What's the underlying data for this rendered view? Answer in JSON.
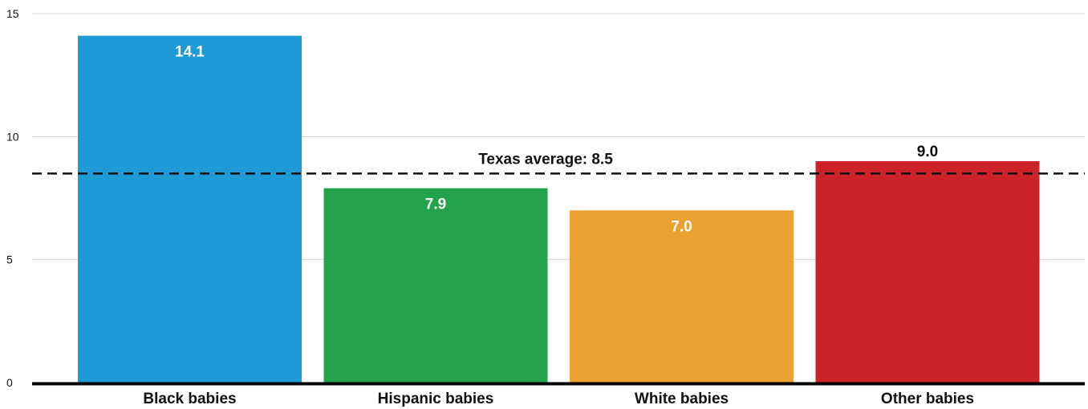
{
  "chart_data": {
    "type": "bar",
    "categories": [
      "Black babies",
      "Hispanic babies",
      "White babies",
      "Other babies"
    ],
    "values": [
      14.1,
      7.9,
      7.0,
      9.0
    ],
    "value_labels": [
      "14.1",
      "7.9",
      "7.0",
      "9.0"
    ],
    "colors": [
      "#1e9ad6",
      "#23a34c",
      "#eba032",
      "#cc2229"
    ],
    "ylim": [
      0,
      15
    ],
    "yticks": [
      0,
      5,
      10,
      15
    ],
    "ytick_labels": [
      "0",
      "5",
      "10",
      "15"
    ],
    "grid": true,
    "reference_line": {
      "value": 8.5,
      "label": "Texas average: 8.5",
      "style": "dashed"
    }
  }
}
